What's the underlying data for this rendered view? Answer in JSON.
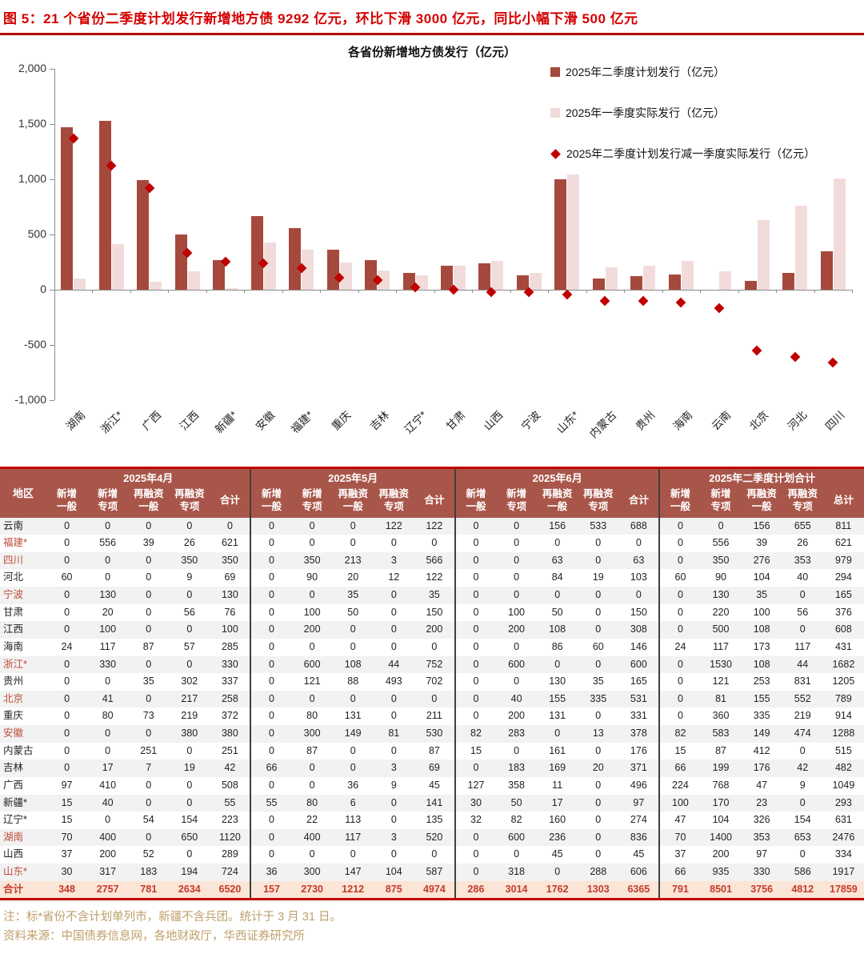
{
  "header": {
    "title": "图 5：21 个省份二季度计划发行新增地方债 9292 亿元，环比下滑 3000 亿元，同比小幅下滑 500 亿元"
  },
  "colors": {
    "title_red": "#d40000",
    "rule_red": "#b00000",
    "bar_plan": "#a6493d",
    "bar_actual": "#f2dcdb",
    "diamond": "#c00000",
    "table_header_bg": "#a9564a",
    "stripe_bg": "#f2f2f2",
    "total_bg": "#fbe5d6",
    "total_text": "#c23b2d",
    "region_highlight": "#be4b38",
    "note_text": "#bfa06a"
  },
  "chart_data": {
    "type": "bar",
    "title": "各省份新增地方债发行（亿元）",
    "categories": [
      "湖南",
      "浙江*",
      "广西",
      "江西",
      "新疆*",
      "安徽",
      "福建*",
      "重庆",
      "吉林",
      "辽宁*",
      "甘肃",
      "山西",
      "宁波",
      "山东*",
      "内蒙古",
      "贵州",
      "海南",
      "云南",
      "北京",
      "河北",
      "四川"
    ],
    "series": [
      {
        "name": "2025年二季度计划发行（亿元）",
        "type": "bar",
        "color": "#a6493d",
        "values": [
          1470,
          1530,
          992,
          500,
          270,
          665,
          556,
          360,
          265,
          151,
          220,
          237,
          130,
          1001,
          102,
          121,
          141,
          0,
          81,
          150,
          350
        ]
      },
      {
        "name": "2025年一季度实际发行（亿元）",
        "type": "bar",
        "color": "#f2dcdb",
        "values": [
          100,
          410,
          70,
          165,
          15,
          425,
          360,
          250,
          175,
          130,
          220,
          260,
          155,
          1045,
          200,
          220,
          260,
          170,
          630,
          760,
          1010
        ]
      },
      {
        "name": "2025年二季度计划发行减一季度实际发行（亿元）",
        "type": "scatter-diamond",
        "color": "#c00000",
        "values": [
          1370,
          1120,
          922,
          335,
          255,
          240,
          196,
          110,
          90,
          21,
          0,
          -23,
          -25,
          -44,
          -98,
          -99,
          -119,
          -170,
          -549,
          -610,
          -660
        ]
      }
    ],
    "ylim": [
      -1000,
      2000
    ],
    "yticks": [
      2000,
      1500,
      1000,
      500,
      0,
      -500,
      -1000
    ],
    "ytick_labels": [
      "2,000",
      "1,500",
      "1,000",
      "500",
      "0",
      "-500",
      "-1,000"
    ],
    "legend_position": "top-right",
    "grid": false
  },
  "table": {
    "corner_label": "地区",
    "groups": [
      {
        "label": "2025年4月",
        "cols": [
          "新增\n一般",
          "新增\n专项",
          "再融资\n一般",
          "再融资\n专项",
          "合计"
        ]
      },
      {
        "label": "2025年5月",
        "cols": [
          "新增\n一般",
          "新增\n专项",
          "再融资\n一般",
          "再融资\n专项",
          "合计"
        ]
      },
      {
        "label": "2025年6月",
        "cols": [
          "新增\n一般",
          "新增\n专项",
          "再融资\n一般",
          "再融资\n专项",
          "合计"
        ]
      },
      {
        "label": "2025年二季度计划合计",
        "cols": [
          "新增\n一般",
          "新增\n专项",
          "再融资\n一般",
          "再融资\n专项",
          "总计"
        ]
      }
    ],
    "rows": [
      {
        "region": "云南",
        "highlight": false,
        "values": [
          0,
          0,
          0,
          0,
          0,
          0,
          0,
          0,
          122,
          122,
          0,
          0,
          156,
          533,
          688,
          0,
          0,
          156,
          655,
          811
        ]
      },
      {
        "region": "福建*",
        "highlight": true,
        "values": [
          0,
          556,
          39,
          26,
          621,
          0,
          0,
          0,
          0,
          0,
          0,
          0,
          0,
          0,
          0,
          0,
          556,
          39,
          26,
          621
        ]
      },
      {
        "region": "四川",
        "highlight": true,
        "values": [
          0,
          0,
          0,
          350,
          350,
          0,
          350,
          213,
          3,
          566,
          0,
          0,
          63,
          0,
          63,
          0,
          350,
          276,
          353,
          979
        ]
      },
      {
        "region": "河北",
        "highlight": false,
        "values": [
          60,
          0,
          0,
          9,
          69,
          0,
          90,
          20,
          12,
          122,
          0,
          0,
          84,
          19,
          103,
          60,
          90,
          104,
          40,
          294
        ]
      },
      {
        "region": "宁波",
        "highlight": true,
        "values": [
          0,
          130,
          0,
          0,
          130,
          0,
          0,
          35,
          0,
          35,
          0,
          0,
          0,
          0,
          0,
          0,
          130,
          35,
          0,
          165
        ]
      },
      {
        "region": "甘肃",
        "highlight": false,
        "values": [
          0,
          20,
          0,
          56,
          76,
          0,
          100,
          50,
          0,
          150,
          0,
          100,
          50,
          0,
          150,
          0,
          220,
          100,
          56,
          376
        ]
      },
      {
        "region": "江西",
        "highlight": false,
        "values": [
          0,
          100,
          0,
          0,
          100,
          0,
          200,
          0,
          0,
          200,
          0,
          200,
          108,
          0,
          308,
          0,
          500,
          108,
          0,
          608
        ]
      },
      {
        "region": "海南",
        "highlight": false,
        "values": [
          24,
          117,
          87,
          57,
          285,
          0,
          0,
          0,
          0,
          0,
          0,
          0,
          86,
          60,
          146,
          24,
          117,
          173,
          117,
          431
        ]
      },
      {
        "region": "浙江*",
        "highlight": true,
        "values": [
          0,
          330,
          0,
          0,
          330,
          0,
          600,
          108,
          44,
          752,
          0,
          600,
          0,
          0,
          600,
          0,
          1530,
          108,
          44,
          1682
        ]
      },
      {
        "region": "贵州",
        "highlight": false,
        "values": [
          0,
          0,
          35,
          302,
          337,
          0,
          121,
          88,
          493,
          702,
          0,
          0,
          130,
          35,
          165,
          0,
          121,
          253,
          831,
          1205
        ]
      },
      {
        "region": "北京",
        "highlight": true,
        "values": [
          0,
          41,
          0,
          217,
          258,
          0,
          0,
          0,
          0,
          0,
          0,
          40,
          155,
          335,
          531,
          0,
          81,
          155,
          552,
          789
        ]
      },
      {
        "region": "重庆",
        "highlight": false,
        "values": [
          0,
          80,
          73,
          219,
          372,
          0,
          80,
          131,
          0,
          211,
          0,
          200,
          131,
          0,
          331,
          0,
          360,
          335,
          219,
          914
        ]
      },
      {
        "region": "安徽",
        "highlight": true,
        "values": [
          0,
          0,
          0,
          380,
          380,
          0,
          300,
          149,
          81,
          530,
          82,
          283,
          0,
          13,
          378,
          82,
          583,
          149,
          474,
          1288
        ]
      },
      {
        "region": "内蒙古",
        "highlight": false,
        "values": [
          0,
          0,
          251,
          0,
          251,
          0,
          87,
          0,
          0,
          87,
          15,
          0,
          161,
          0,
          176,
          15,
          87,
          412,
          0,
          515
        ]
      },
      {
        "region": "吉林",
        "highlight": false,
        "values": [
          0,
          17,
          7,
          19,
          42,
          66,
          0,
          0,
          3,
          69,
          0,
          183,
          169,
          20,
          371,
          66,
          199,
          176,
          42,
          482
        ]
      },
      {
        "region": "广西",
        "highlight": false,
        "values": [
          97,
          410,
          0,
          0,
          508,
          0,
          0,
          36,
          9,
          45,
          127,
          358,
          11,
          0,
          496,
          224,
          768,
          47,
          9,
          1049
        ]
      },
      {
        "region": "新疆*",
        "highlight": false,
        "values": [
          15,
          40,
          0,
          0,
          55,
          55,
          80,
          6,
          0,
          141,
          30,
          50,
          17,
          0,
          97,
          100,
          170,
          23,
          0,
          293
        ]
      },
      {
        "region": "辽宁*",
        "highlight": false,
        "values": [
          15,
          0,
          54,
          154,
          223,
          0,
          22,
          113,
          0,
          135,
          32,
          82,
          160,
          0,
          274,
          47,
          104,
          326,
          154,
          631
        ]
      },
      {
        "region": "湖南",
        "highlight": true,
        "values": [
          70,
          400,
          0,
          650,
          1120,
          0,
          400,
          117,
          3,
          520,
          0,
          600,
          236,
          0,
          836,
          70,
          1400,
          353,
          653,
          2476
        ]
      },
      {
        "region": "山西",
        "highlight": false,
        "values": [
          37,
          200,
          52,
          0,
          289,
          0,
          0,
          0,
          0,
          0,
          0,
          0,
          45,
          0,
          45,
          37,
          200,
          97,
          0,
          334
        ]
      },
      {
        "region": "山东*",
        "highlight": true,
        "values": [
          30,
          317,
          183,
          194,
          724,
          36,
          300,
          147,
          104,
          587,
          0,
          318,
          0,
          288,
          606,
          66,
          935,
          330,
          586,
          1917
        ]
      }
    ],
    "total_row": {
      "region": "合计",
      "values": [
        348,
        2757,
        781,
        2634,
        6520,
        157,
        2730,
        1212,
        875,
        4974,
        286,
        3014,
        1762,
        1303,
        6365,
        791,
        8501,
        3756,
        4812,
        17859
      ]
    }
  },
  "footer": {
    "note": "注：标*省份不含计划单列市，新疆不含兵团。统计于 3 月 31 日。",
    "source": "资料来源：中国债券信息网，各地财政厅，华西证券研究所"
  }
}
